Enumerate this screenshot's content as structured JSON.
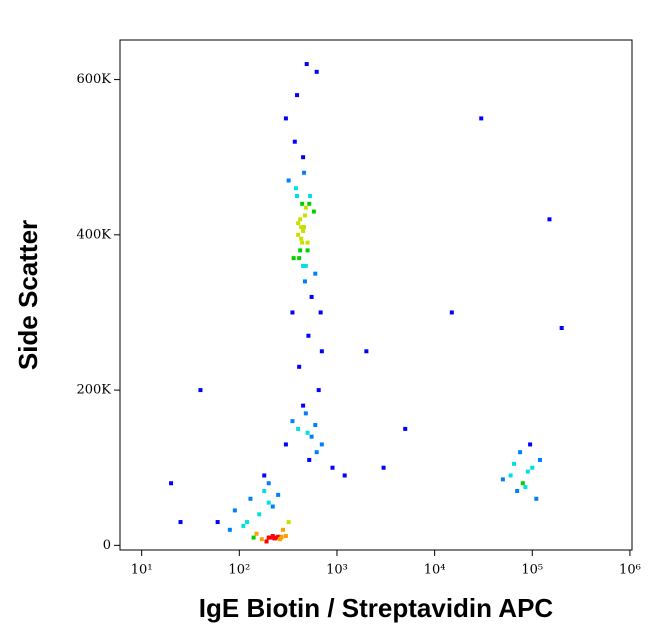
{
  "chart_data": {
    "type": "scatter",
    "x_label": "IgE Biotin / Streptavidin APC",
    "y_label": "Side Scatter",
    "x_log": true,
    "xlim": [
      6,
      1050000
    ],
    "ylim": [
      -6000,
      651000
    ],
    "xticks": [
      {
        "value": 10,
        "label": "10¹"
      },
      {
        "value": 100,
        "label": "10²"
      },
      {
        "value": 1000,
        "label": "10³"
      },
      {
        "value": 10000,
        "label": "10⁴"
      },
      {
        "value": 100000,
        "label": "10⁵"
      },
      {
        "value": 1000000,
        "label": "10⁶"
      }
    ],
    "yticks": [
      0,
      {
        "value": 200000,
        "label": "200K"
      },
      {
        "value": 400000,
        "label": "400K"
      },
      {
        "value": 600000,
        "label": "600K"
      }
    ],
    "x": [
      420,
      500,
      380,
      600,
      450,
      350,
      700,
      520,
      400,
      480,
      300,
      550,
      460,
      650,
      390,
      430,
      510,
      370,
      580,
      440,
      470,
      320,
      620,
      410,
      530,
      360,
      490,
      680,
      450,
      400,
      430,
      470,
      440,
      410,
      460,
      390,
      500,
      420,
      480,
      450,
      400,
      550,
      480,
      620,
      350,
      700,
      500,
      450,
      600,
      520,
      900,
      1200,
      300,
      130,
      180,
      220,
      160,
      250,
      200,
      120,
      90,
      280,
      240,
      300,
      170,
      150,
      210,
      260,
      190,
      80,
      60,
      110,
      140,
      230,
      270,
      320,
      200,
      180,
      200,
      230,
      250,
      270,
      220,
      260,
      60000,
      80000,
      100000,
      70000,
      120000,
      90000,
      50000,
      110000,
      75000,
      85000,
      95000,
      65000,
      20,
      40,
      15000,
      2000,
      30000,
      200000,
      5000,
      150000,
      25,
      3000
    ],
    "values": [
      420000,
      380000,
      460000,
      350000,
      500000,
      300000,
      250000,
      440000,
      400000,
      360000,
      550000,
      320000,
      480000,
      200000,
      580000,
      410000,
      270000,
      520000,
      430000,
      390000,
      340000,
      470000,
      610000,
      230000,
      450000,
      370000,
      620000,
      300000,
      405000,
      415000,
      395000,
      425000,
      440000,
      370000,
      410000,
      450000,
      390000,
      380000,
      435000,
      360000,
      150000,
      140000,
      170000,
      120000,
      160000,
      130000,
      145000,
      180000,
      155000,
      110000,
      100000,
      90000,
      130000,
      60000,
      70000,
      50000,
      40000,
      65000,
      55000,
      30000,
      45000,
      20000,
      10000,
      12000,
      8000,
      15000,
      10000,
      8000,
      5000,
      20000,
      30000,
      25000,
      10000,
      9000,
      11000,
      30000,
      80000,
      90000,
      10000,
      9000,
      11000,
      10000,
      12000,
      8000,
      90000,
      80000,
      100000,
      70000,
      110000,
      95000,
      85000,
      60000,
      120000,
      75000,
      130000,
      105000,
      80000,
      200000,
      300000,
      250000,
      550000,
      280000,
      150000,
      420000,
      30000,
      100000
    ]
  }
}
